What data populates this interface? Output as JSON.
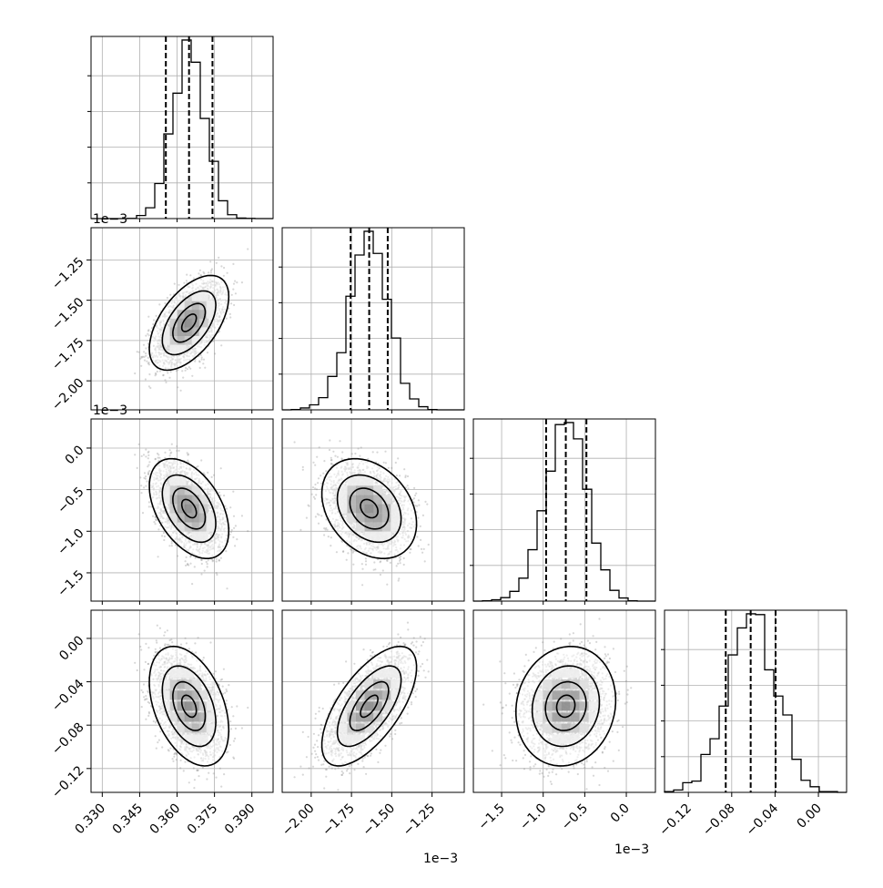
{
  "chart_data": {
    "type": "corner",
    "n_params": 4,
    "grid": true,
    "quantile_lines": "dashed",
    "params": [
      {
        "ticks": [
          0.33,
          0.345,
          0.36,
          0.375,
          0.39
        ],
        "tick_labels": [
          "0.330",
          "0.345",
          "0.360",
          "0.375",
          "0.390"
        ],
        "range": [
          0.3255,
          0.3985
        ],
        "quantiles": [
          0.3555,
          0.3648,
          0.3742
        ],
        "mean": 0.3648,
        "sd": 0.0065,
        "offset_label": ""
      },
      {
        "ticks": [
          -2.0,
          -1.75,
          -1.5,
          -1.25
        ],
        "tick_labels": [
          "−2.00",
          "−1.75",
          "−1.50",
          "−1.25"
        ],
        "range": [
          -2.18,
          -1.05
        ],
        "quantiles": [
          -1.755,
          -1.64,
          -1.525
        ],
        "mean": -1.64,
        "sd": 0.12,
        "offset_label": "1e−3"
      },
      {
        "ticks": [
          -1.5,
          -1.0,
          -0.5,
          0.0
        ],
        "tick_labels": [
          "−1.5",
          "−1.0",
          "−0.5",
          "0.0"
        ],
        "range": [
          -1.84,
          0.35
        ],
        "quantiles": [
          -0.965,
          -0.728,
          -0.48
        ],
        "mean": -0.728,
        "sd": 0.245,
        "offset_label": "1e−3"
      },
      {
        "ticks": [
          -0.12,
          -0.08,
          -0.04,
          0.0
        ],
        "tick_labels": [
          "−0.12",
          "−0.08",
          "−0.04",
          "0.00"
        ],
        "range": [
          -0.142,
          0.026
        ],
        "quantiles": [
          -0.0855,
          -0.0625,
          -0.0395
        ],
        "mean": -0.0625,
        "sd": 0.0225,
        "offset_label": ""
      }
    ],
    "pairs": [
      {
        "row": 1,
        "col": 0,
        "corr": 0.55
      },
      {
        "row": 2,
        "col": 0,
        "corr": -0.45
      },
      {
        "row": 2,
        "col": 1,
        "corr": -0.3
      },
      {
        "row": 3,
        "col": 0,
        "corr": -0.4
      },
      {
        "row": 3,
        "col": 1,
        "corr": 0.65
      },
      {
        "row": 3,
        "col": 2,
        "corr": 0.1
      }
    ],
    "colors": {
      "line": "#000000",
      "grid": "#b0b0b0",
      "points": "#8c8c8c"
    }
  }
}
